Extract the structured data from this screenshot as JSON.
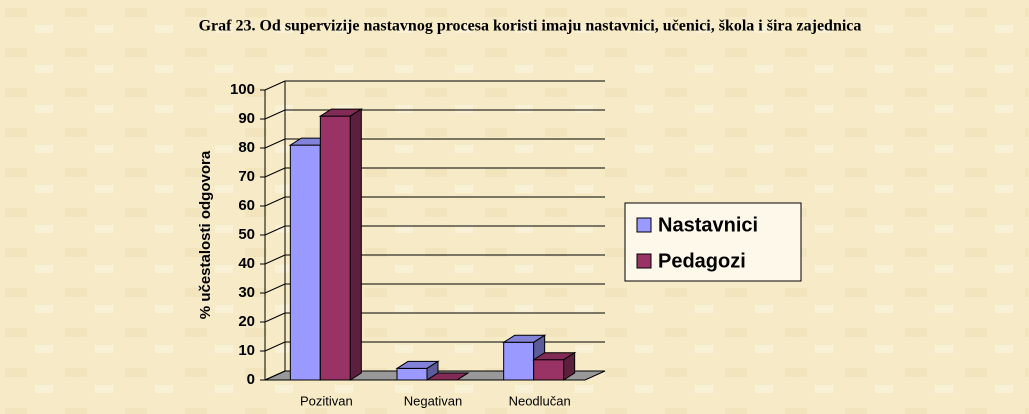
{
  "chart_data": {
    "type": "bar3d",
    "title": "Graf 23. Od supervizije nastavnog procesa koristi imaju nastavnici, učenici, škola i šira zajednica",
    "ylabel": "% učestalosti odgovora",
    "categories": [
      "Pozitivan",
      "Negativan",
      "Neodlučan"
    ],
    "series": [
      {
        "name": "Nastavnici",
        "color": "#9999ff",
        "values": [
          81,
          4,
          13
        ]
      },
      {
        "name": "Pedagozi",
        "color": "#993366",
        "values": [
          91,
          0,
          7
        ]
      }
    ],
    "ylim": [
      0,
      100
    ],
    "yticks": [
      0,
      10,
      20,
      30,
      40,
      50,
      60,
      70,
      80,
      90,
      100
    ],
    "grid": true,
    "legend": "right"
  }
}
